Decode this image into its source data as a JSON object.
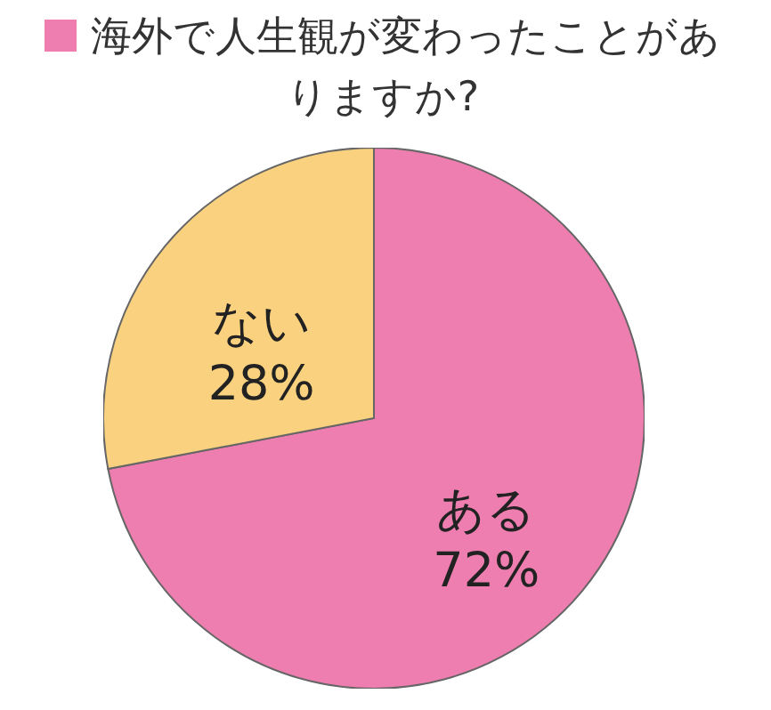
{
  "chart_data": {
    "type": "pie",
    "title": "海外で人生観が変わったことがありますか?",
    "categories": [
      "ある",
      "ない"
    ],
    "values": [
      72,
      28
    ],
    "value_labels": [
      "72%",
      "28%"
    ],
    "colors": [
      "#ee7eb0",
      "#fad27f"
    ]
  }
}
